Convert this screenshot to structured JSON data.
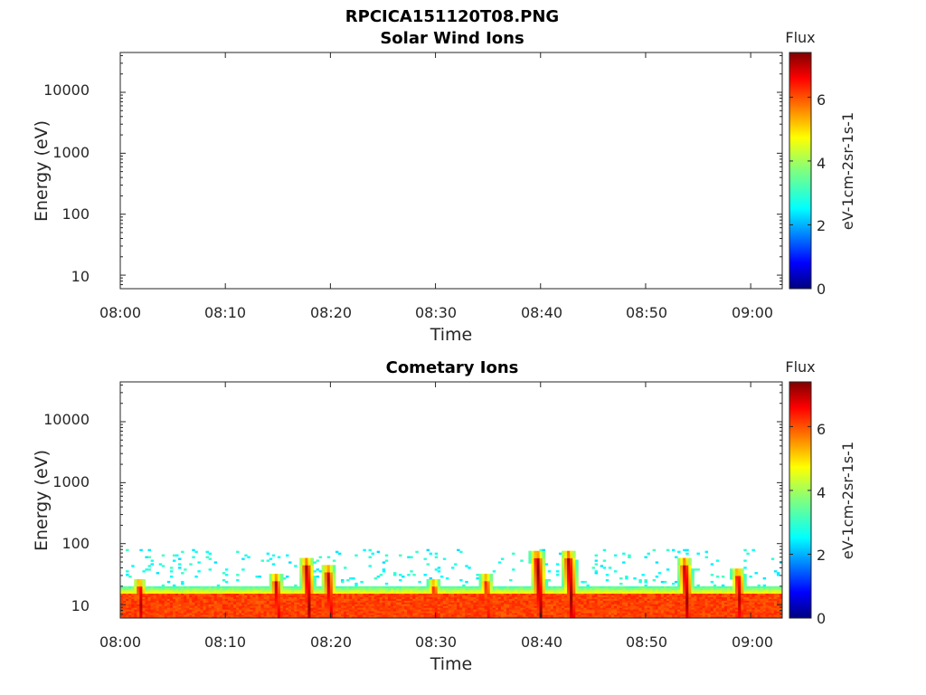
{
  "figure_title": "RPCICA151120T08.PNG",
  "chart_data": [
    {
      "type": "heatmap",
      "title": "Solar Wind Ions",
      "xlabel": "Time",
      "ylabel": "Energy (eV)",
      "yscale": "log",
      "ylim": [
        6,
        45000
      ],
      "xlim": [
        "08:00",
        "09:03"
      ],
      "x_ticks": [
        "08:00",
        "08:10",
        "08:20",
        "08:30",
        "08:40",
        "08:50",
        "09:00"
      ],
      "y_ticks": [
        "10",
        "100",
        "1000",
        "10000"
      ],
      "colorbar": {
        "title": "Flux",
        "label": "eV-1cm-2sr-1s-1",
        "ticks": [
          "0",
          "2",
          "4",
          "6"
        ],
        "range": [
          0,
          7.4
        ],
        "colormap": "jet"
      },
      "values": "empty (no data)"
    },
    {
      "type": "heatmap",
      "title": "Cometary Ions",
      "xlabel": "Time",
      "ylabel": "Energy (eV)",
      "yscale": "log",
      "ylim": [
        6,
        45000
      ],
      "xlim": [
        "08:00",
        "09:03"
      ],
      "x_ticks": [
        "08:00",
        "08:10",
        "08:20",
        "08:30",
        "08:40",
        "08:50",
        "09:00"
      ],
      "y_ticks": [
        "10",
        "100",
        "1000",
        "10000"
      ],
      "colorbar": {
        "title": "Flux",
        "label": "eV-1cm-2sr-1s-1",
        "ticks": [
          "0",
          "2",
          "4",
          "6"
        ],
        "range": [
          0,
          7.4
        ],
        "colormap": "jet"
      },
      "background_band": {
        "energy_range_eV": [
          6,
          15
        ],
        "flux": 6.0,
        "edge_energy_eV": 20,
        "sparse_noise_max_eV": 80
      },
      "peaks": [
        {
          "time": "08:02",
          "peak_energy_eV": 20,
          "flux": 7.0
        },
        {
          "time": "08:15",
          "peak_energy_eV": 25,
          "flux": 7.0
        },
        {
          "time": "08:18",
          "peak_energy_eV": 45,
          "flux": 7.2
        },
        {
          "time": "08:20",
          "peak_energy_eV": 35,
          "flux": 7.0
        },
        {
          "time": "08:30",
          "peak_energy_eV": 20,
          "flux": 6.5
        },
        {
          "time": "08:35",
          "peak_energy_eV": 25,
          "flux": 6.5
        },
        {
          "time": "08:40",
          "peak_energy_eV": 60,
          "flux": 7.3
        },
        {
          "time": "08:43",
          "peak_energy_eV": 60,
          "flux": 7.3
        },
        {
          "time": "08:54",
          "peak_energy_eV": 45,
          "flux": 7.2
        },
        {
          "time": "08:59",
          "peak_energy_eV": 30,
          "flux": 7.0
        }
      ]
    }
  ]
}
